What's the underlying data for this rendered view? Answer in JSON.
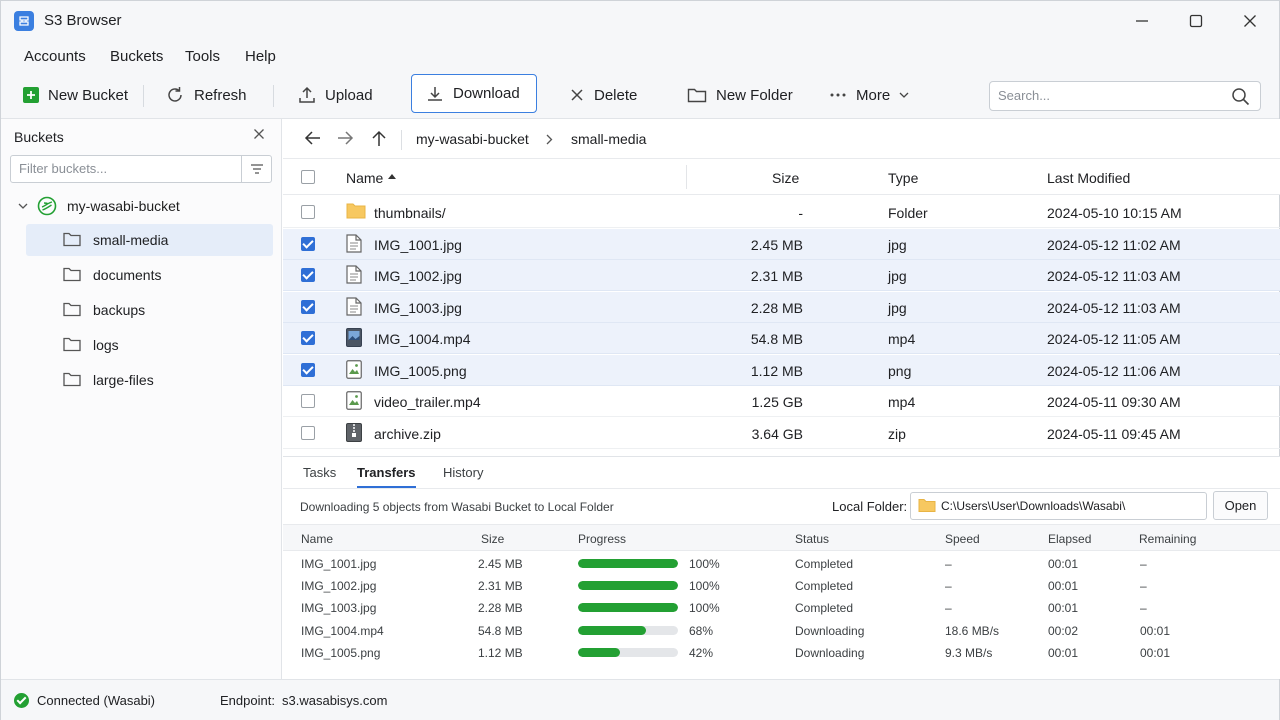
{
  "window": {
    "title": "S3 Browser"
  },
  "menu": [
    "Accounts",
    "Buckets",
    "Tools",
    "Help"
  ],
  "toolbar": {
    "new_bucket": "New Bucket",
    "refresh": "Refresh",
    "upload": "Upload",
    "download": "Download",
    "delete": "Delete",
    "new_folder": "New Folder",
    "more": "More",
    "search_placeholder": "Search..."
  },
  "sidebar": {
    "title": "Buckets",
    "filter_placeholder": "Filter buckets...",
    "bucket": "my-wasabi-bucket",
    "folders": [
      "small-media",
      "documents",
      "backups",
      "logs",
      "large-files"
    ],
    "selected_index": 0
  },
  "path": {
    "bucket": "my-wasabi-bucket",
    "folder": "small-media"
  },
  "files": {
    "headers": {
      "name": "Name",
      "size": "Size",
      "type": "Type",
      "modified": "Last Modified"
    },
    "rows": [
      {
        "name": "thumbnails/",
        "size": "-",
        "type": "Folder",
        "modified": "2024-05-10 10:15 AM",
        "checked": false,
        "icon": "folder-icon"
      },
      {
        "name": "IMG_1001.jpg",
        "size": "2.45 MB",
        "type": "jpg",
        "modified": "2024-05-12 11:02 AM",
        "checked": true,
        "icon": "file-icon"
      },
      {
        "name": "IMG_1002.jpg",
        "size": "2.31 MB",
        "type": "jpg",
        "modified": "2024-05-12 11:03 AM",
        "checked": true,
        "icon": "file-icon"
      },
      {
        "name": "IMG_1003.jpg",
        "size": "2.28 MB",
        "type": "jpg",
        "modified": "2024-05-12 11:03 AM",
        "checked": true,
        "icon": "file-icon"
      },
      {
        "name": "IMG_1004.mp4",
        "size": "54.8 MB",
        "type": "mp4",
        "modified": "2024-05-12 11:05 AM",
        "checked": true,
        "icon": "video-file-icon"
      },
      {
        "name": "IMG_1005.png",
        "size": "1.12 MB",
        "type": "png",
        "modified": "2024-05-12 11:06 AM",
        "checked": true,
        "icon": "image-file-icon"
      },
      {
        "name": "video_trailer.mp4",
        "size": "1.25 GB",
        "type": "mp4",
        "modified": "2024-05-11 09:30 AM",
        "checked": false,
        "icon": "image-file-icon"
      },
      {
        "name": "archive.zip",
        "size": "3.64 GB",
        "type": "zip",
        "modified": "2024-05-11 09:45 AM",
        "checked": false,
        "icon": "archive-file-icon"
      }
    ]
  },
  "panel": {
    "tabs": [
      "Tasks",
      "Transfers",
      "History"
    ],
    "active_tab": 1,
    "message": "Downloading 5 objects from Wasabi Bucket to Local Folder",
    "local_folder_label": "Local Folder:",
    "local_folder_path": "C:\\Users\\User\\Downloads\\Wasabi\\",
    "open_label": "Open",
    "headers": {
      "name": "Name",
      "size": "Size",
      "progress": "Progress",
      "status": "Status",
      "speed": "Speed",
      "elapsed": "Elapsed",
      "remaining": "Remaining"
    },
    "transfers": [
      {
        "name": "IMG_1001.jpg",
        "size": "2.45 MB",
        "progress": 100,
        "progress_label": "100%",
        "status": "Completed",
        "speed": "–",
        "elapsed": "00:01",
        "remaining": "–"
      },
      {
        "name": "IMG_1002.jpg",
        "size": "2.31 MB",
        "progress": 100,
        "progress_label": "100%",
        "status": "Completed",
        "speed": "–",
        "elapsed": "00:01",
        "remaining": "–"
      },
      {
        "name": "IMG_1003.jpg",
        "size": "2.28 MB",
        "progress": 100,
        "progress_label": "100%",
        "status": "Completed",
        "speed": "–",
        "elapsed": "00:01",
        "remaining": "–"
      },
      {
        "name": "IMG_1004.mp4",
        "size": "54.8 MB",
        "progress": 68,
        "progress_label": "68%",
        "status": "Downloading",
        "speed": "18.6 MB/s",
        "elapsed": "00:02",
        "remaining": "00:01"
      },
      {
        "name": "IMG_1005.png",
        "size": "1.12 MB",
        "progress": 42,
        "progress_label": "42%",
        "status": "Downloading",
        "speed": "9.3 MB/s",
        "elapsed": "00:01",
        "remaining": "00:01"
      }
    ]
  },
  "status": {
    "connection": "Connected (Wasabi)",
    "endpoint_label": "Endpoint:",
    "endpoint": "s3.wasabisys.com"
  },
  "colors": {
    "accent": "#2f6fd6",
    "progress": "#23a033",
    "selection": "#edf2fb"
  }
}
